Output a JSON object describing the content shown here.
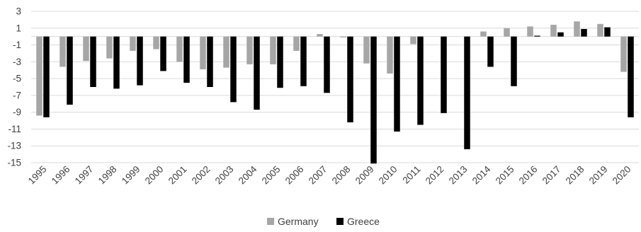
{
  "chart_data": {
    "type": "bar",
    "title": "",
    "xlabel": "",
    "ylabel": "",
    "ylim": [
      -15,
      3
    ],
    "yticks": [
      3,
      1,
      -1,
      -3,
      -5,
      -7,
      -9,
      -11,
      -13,
      -15
    ],
    "grid": true,
    "legend_position": "bottom",
    "categories": [
      "1995",
      "1996",
      "1997",
      "1998",
      "1999",
      "2000",
      "2001",
      "2002",
      "2003",
      "2004",
      "2005",
      "2006",
      "2007",
      "2008",
      "2009",
      "2010",
      "2011",
      "2012",
      "2013",
      "2014",
      "2015",
      "2016",
      "2017",
      "2018",
      "2019",
      "2020"
    ],
    "series": [
      {
        "name": "Germany",
        "color": "#a6a6a6",
        "values": [
          -9.4,
          -3.6,
          -2.9,
          -2.6,
          -1.7,
          -1.5,
          -3.0,
          -3.9,
          -3.7,
          -3.3,
          -3.3,
          -1.7,
          0.3,
          -0.1,
          -3.2,
          -4.4,
          -0.9,
          0.0,
          0.0,
          0.6,
          1.0,
          1.2,
          1.4,
          1.8,
          1.5,
          -4.2
        ]
      },
      {
        "name": "Greece",
        "color": "#000000",
        "values": [
          -9.6,
          -8.1,
          -6.0,
          -6.2,
          -5.8,
          -4.1,
          -5.5,
          -6.0,
          -7.8,
          -8.7,
          -6.1,
          -5.9,
          -6.7,
          -10.2,
          -15.1,
          -11.3,
          -10.5,
          -9.1,
          -13.4,
          -3.6,
          -5.9,
          0.1,
          0.5,
          0.9,
          1.1,
          -9.6
        ]
      }
    ]
  }
}
